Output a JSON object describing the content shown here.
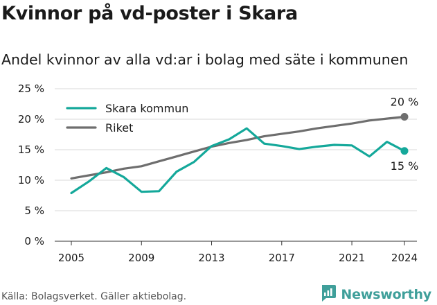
{
  "header": {
    "title": "Kvinnor på vd-poster i Skara",
    "subtitle": "Andel kvinnor av alla vd:ar i bolag med säte i kommunen"
  },
  "footer": {
    "source": "Källa: Bolagsverket. Gäller aktiebolag.",
    "brand": "Newsworthy"
  },
  "colors": {
    "skara": "#14a89a",
    "riket": "#6e6e6e",
    "grid": "#d9d9d9",
    "brand": "#3f9f9a"
  },
  "chart_data": {
    "type": "line",
    "title": "Kvinnor på vd-poster i Skara",
    "subtitle": "Andel kvinnor av alla vd:ar i bolag med säte i kommunen",
    "x": [
      2005,
      2006,
      2007,
      2008,
      2009,
      2010,
      2011,
      2012,
      2013,
      2014,
      2015,
      2016,
      2017,
      2018,
      2019,
      2020,
      2021,
      2022,
      2023,
      2024
    ],
    "series": [
      {
        "name": "Skara kommun",
        "values": [
          7.9,
          9.8,
          12.0,
          10.5,
          8.1,
          8.2,
          11.4,
          13.0,
          15.6,
          16.7,
          18.5,
          16.0,
          15.6,
          15.1,
          15.5,
          15.8,
          15.7,
          13.9,
          16.3,
          14.8
        ],
        "end_label": "15 %"
      },
      {
        "name": "Riket",
        "values": [
          10.3,
          10.8,
          11.3,
          11.9,
          12.3,
          13.1,
          13.9,
          14.7,
          15.5,
          16.1,
          16.6,
          17.2,
          17.6,
          18.0,
          18.5,
          18.9,
          19.3,
          19.8,
          20.1,
          20.4
        ],
        "end_label": "20 %"
      }
    ],
    "xticks": [
      2005,
      2009,
      2013,
      2017,
      2021,
      2024
    ],
    "yticks": [
      {
        "value": 0,
        "label": "0 %"
      },
      {
        "value": 5,
        "label": "5 %"
      },
      {
        "value": 10,
        "label": "10 %"
      },
      {
        "value": 15,
        "label": "15 %"
      },
      {
        "value": 20,
        "label": "20 %"
      },
      {
        "value": 25,
        "label": "25 %"
      }
    ],
    "ylim": [
      0,
      25
    ],
    "xlim": [
      2005,
      2024
    ],
    "grid": "horizontal",
    "legend": "top-left"
  }
}
